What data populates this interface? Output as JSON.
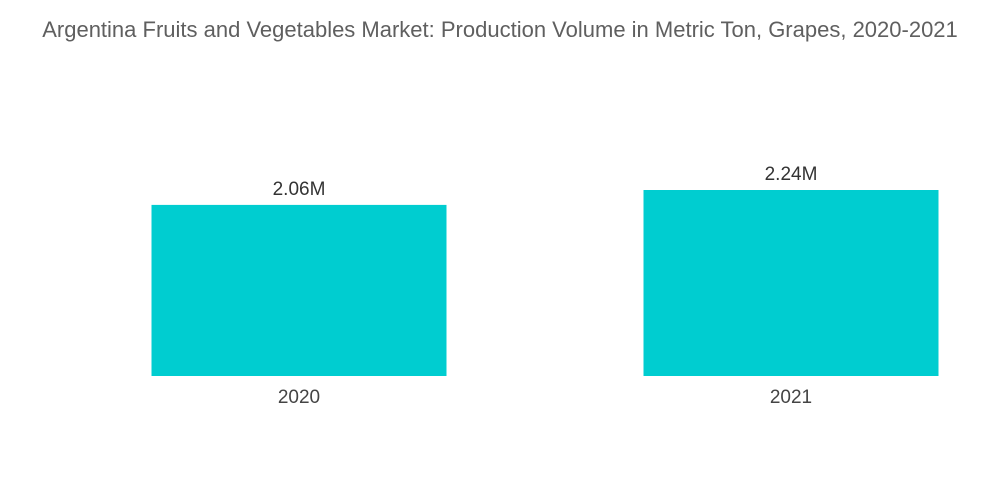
{
  "chart_data": {
    "type": "bar",
    "title": "Argentina Fruits and Vegetables Market: Production Volume in Metric Ton, Grapes, 2020-2021",
    "categories": [
      "2020",
      "2021"
    ],
    "values": [
      2.06,
      2.24
    ],
    "data_labels": [
      "2.06M",
      "2.24M"
    ],
    "unit": "M metric tons",
    "xlabel": "",
    "ylabel": "",
    "ylim": [
      0,
      2.24
    ],
    "grid": false,
    "legend": "none",
    "colors": {
      "bar": "#00cdd0"
    }
  }
}
